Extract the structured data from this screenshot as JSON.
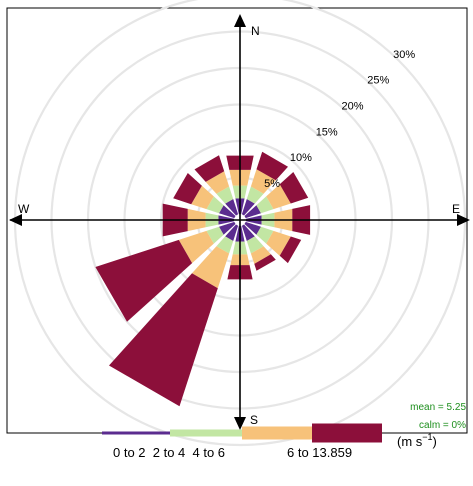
{
  "chart_data": {
    "type": "wind-rose",
    "compass": {
      "north": "N",
      "south": "S",
      "east": "E",
      "west": "W"
    },
    "ring_labels": [
      "5%",
      "10%",
      "15%",
      "20%",
      "25%",
      "30%"
    ],
    "ring_values": [
      5,
      10,
      15,
      20,
      25,
      30
    ],
    "rmax": 30,
    "stats": {
      "mean": "mean = 5.25",
      "calm": "calm = 0%"
    },
    "units_label": "(m s",
    "units_exponent": "−1",
    "units_close": ")",
    "series": [
      {
        "name": "0 to 2",
        "color": "#5b2c8f"
      },
      {
        "name": "2 to 4",
        "color": "#c2e6a3"
      },
      {
        "name": "4 to 6",
        "color": "#f7c27a"
      },
      {
        "name": "6 to 13.859",
        "color": "#8c0f3a"
      }
    ],
    "legend_row": {
      "prefix": "0 to 2  2 to 4  4 to 6",
      "suffix": "6 to 13.859"
    },
    "directions": [
      0,
      30,
      60,
      90,
      120,
      150,
      180,
      210,
      240,
      270,
      300,
      330
    ],
    "cumulative_percent": [
      [
        2.2,
        4.0,
        6.2,
        8.2
      ],
      [
        2.2,
        4.0,
        6.5,
        9.0
      ],
      [
        2.2,
        4.0,
        6.5,
        9.0
      ],
      [
        2.2,
        4.0,
        6.5,
        9.0
      ],
      [
        2.2,
        4.0,
        6.5,
        8.0
      ],
      [
        2.2,
        4.0,
        5.5,
        6.5
      ],
      [
        2.2,
        4.0,
        5.5,
        7.5
      ],
      [
        2.2,
        4.0,
        9.0,
        26.0
      ],
      [
        2.2,
        4.0,
        8.0,
        20.0
      ],
      [
        2.2,
        4.0,
        6.5,
        10.0
      ],
      [
        2.2,
        4.0,
        6.2,
        8.8
      ],
      [
        2.2,
        4.0,
        6.2,
        8.5
      ]
    ]
  }
}
